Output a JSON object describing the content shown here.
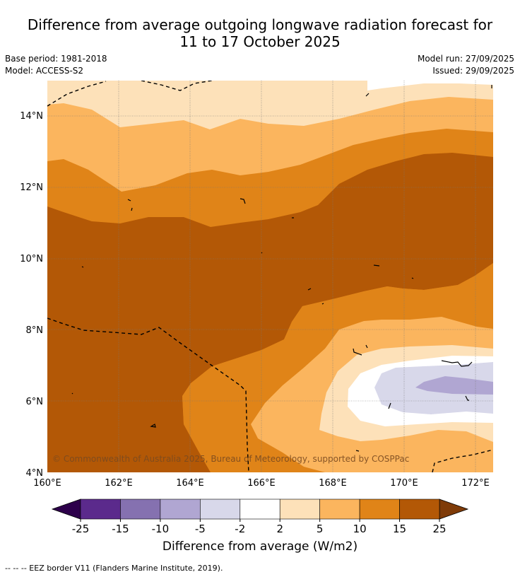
{
  "title_line1": "Difference from average outgoing longwave radiation forecast for",
  "title_line2": "11 to 17 October 2025",
  "base_period": "Base period: 1981-2018",
  "model": "Model: ACCESS-S2",
  "model_run": "Model run: 27/09/2025",
  "issued": "Issued: 29/09/2025",
  "map": {
    "lat_labels": [
      "14°N",
      "12°N",
      "10°N",
      "8°N",
      "6°N",
      "4°N"
    ],
    "lon_labels": [
      "160°E",
      "162°E",
      "164°E",
      "166°E",
      "168°E",
      "170°E",
      "172°E"
    ],
    "copyright": "© Commonwealth of Australia 2025, Bureau of Meteorology, supported by COSPPac"
  },
  "colorbar": {
    "ticks": [
      "-25",
      "-15",
      "-10",
      "-5",
      "-2",
      "2",
      "5",
      "10",
      "15",
      "25"
    ],
    "colors": [
      "#5b2a8c",
      "#8571b0",
      "#b0a6d2",
      "#d8d8ea",
      "#ffffff",
      "#fde1b9",
      "#fbb55e",
      "#e08418",
      "#b35806"
    ],
    "extend_low_color": "#2d004b",
    "extend_high_color": "#7f3b08",
    "label": "Difference from average (W/m2)"
  },
  "footnote": "-- -- -- EEZ border V11 (Flanders Marine Institute, 2019)."
}
